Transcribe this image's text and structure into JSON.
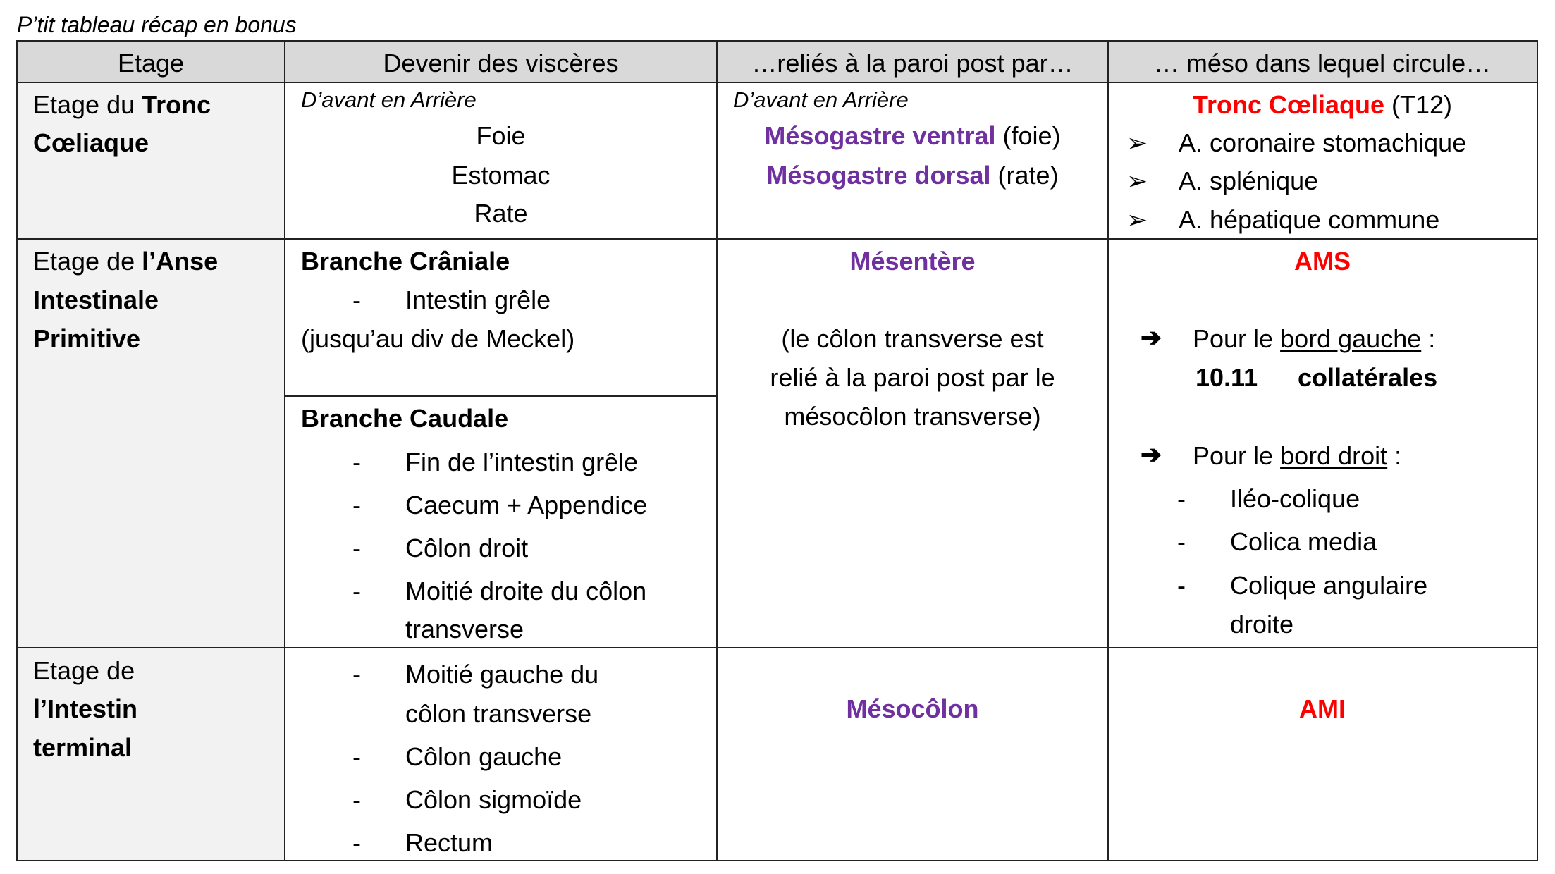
{
  "title": "P’tit tableau récap en bonus",
  "colors": {
    "header_bg": "#d9d9d9",
    "first_col_bg": "#f2f2f2",
    "purple": "#7030a0",
    "red": "#ff0000"
  },
  "headers": [
    "Etage",
    "Devenir des viscères",
    "…reliés à la paroi post par…",
    "… méso dans lequel circule…"
  ],
  "row1": {
    "etage_prefix": "Etage du ",
    "etage_bold_1": "Tronc",
    "etage_bold_2": "Cœliaque",
    "visceres_note": "D’avant en Arrière",
    "visceres": [
      "Foie",
      "Estomac",
      "Rate"
    ],
    "paroi_note": "D’avant en Arrière",
    "paroi": [
      {
        "bold": "Mésogastre ventral",
        "rest": " (foie)"
      },
      {
        "bold": "Mésogastre dorsal",
        "rest": " (rate)"
      }
    ],
    "meso_title": "Tronc Cœliaque",
    "meso_title_rest": " (T12)",
    "meso_bullet_icon": "arrowhead-bullet-icon",
    "meso_items": [
      "A. coronaire stomachique",
      "A. splénique",
      "A. hépatique commune"
    ]
  },
  "row2": {
    "etage_prefix": "Etage de ",
    "etage_bold": [
      "l’Anse",
      "Intestinale",
      "Primitive"
    ],
    "cranial_title": "Branche Crâniale",
    "cranial_items": [
      "Intestin grêle"
    ],
    "cranial_note": "(jusqu’au div de Meckel)",
    "caudal_title": "Branche Caudale",
    "caudal_items": [
      "Fin de l’intestin grêle",
      "Caecum + Appendice",
      "Côlon droit",
      "Moitié droite du côlon",
      "transverse"
    ],
    "paroi_title": "Mésentère",
    "paroi_note": [
      "(le côlon transverse est",
      "relié à la paroi post par le",
      "mésocôlon transverse)"
    ],
    "meso_title": "AMS",
    "arrow_icon": "right-arrow-icon",
    "left_prefix": "Pour le ",
    "left_underlined": "bord gauche",
    "left_suffix": " :",
    "left_count": "10.11",
    "left_count_label": "collatérales",
    "right_prefix": "Pour le ",
    "right_underlined": "bord droit",
    "right_suffix": " :",
    "right_items": [
      "Iléo-colique",
      "Colica media",
      "Colique angulaire",
      "droite"
    ]
  },
  "row3": {
    "etage_prefix": "Etage de",
    "etage_bold": [
      "l’Intestin",
      "terminal"
    ],
    "items": [
      "Moitié gauche du",
      "côlon transverse",
      "Côlon gauche",
      "Côlon sigmoïde",
      "Rectum"
    ],
    "paroi": "Mésocôlon",
    "meso": "AMI"
  },
  "dash": "-"
}
